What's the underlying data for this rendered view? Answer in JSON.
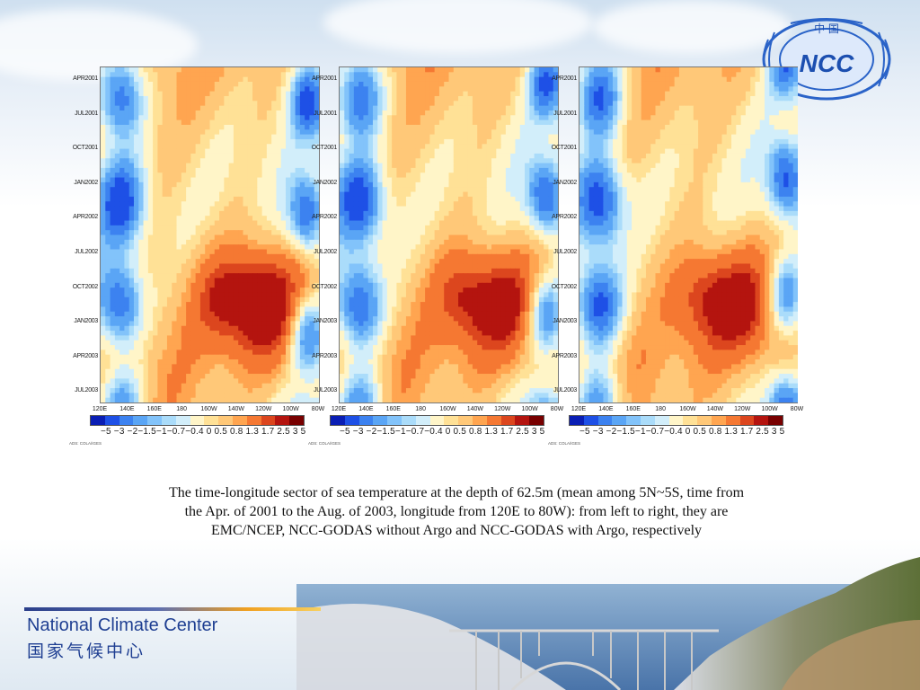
{
  "logo": {
    "text": "NCC",
    "chars": "中 国"
  },
  "chart_data": [
    {
      "type": "heatmap",
      "title": "EMC/NCEP",
      "y_ticks": [
        "APR2001",
        "JUL2001",
        "OCT2001",
        "JAN2002",
        "APR2002",
        "JUL2002",
        "OCT2002",
        "JAN2003",
        "APR2003",
        "JUL2003"
      ],
      "x_ticks": [
        "120E",
        "140E",
        "160E",
        "180",
        "160W",
        "140W",
        "120W",
        "100W",
        "80W"
      ],
      "colorbar_levels": [
        -5,
        -3,
        -2,
        -1.5,
        -1,
        -0.7,
        -0.4,
        0,
        0.5,
        0.8,
        1.3,
        1.7,
        2.5,
        3,
        5
      ],
      "colorbar_label": "−5 −3 −2−1.5−1−0.7−0.4 0  0.5 0.8 1.3 1.7 2.5  3   5",
      "credit": "ADS: COLA/IGES"
    },
    {
      "type": "heatmap",
      "title": "NCC-GODAS without Argo",
      "y_ticks": [
        "APR2001",
        "JUL2001",
        "OCT2001",
        "JAN2002",
        "APR2002",
        "JUL2002",
        "OCT2002",
        "JAN2003",
        "APR2003",
        "JUL2003"
      ],
      "x_ticks": [
        "120E",
        "140E",
        "160E",
        "180",
        "160W",
        "140W",
        "120W",
        "100W",
        "80W"
      ],
      "colorbar_levels": [
        -5,
        -3,
        -2,
        -1.5,
        -1,
        -0.7,
        -0.4,
        0,
        0.5,
        0.8,
        1.3,
        1.7,
        2.5,
        3,
        5
      ],
      "colorbar_label": "−5 −3 −2−1.5−1−0.7−0.4 0  0.5 0.8 1.3 1.7 2.5  3   5",
      "credit": "ADS: COLA/IGES"
    },
    {
      "type": "heatmap",
      "title": "NCC-GODAS with Argo",
      "y_ticks": [
        "APR2001",
        "JUL2001",
        "OCT2001",
        "JAN2002",
        "APR2002",
        "JUL2002",
        "OCT2002",
        "JAN2003",
        "APR2003",
        "JUL2003"
      ],
      "x_ticks": [
        "120E",
        "140E",
        "160E",
        "180",
        "160W",
        "140W",
        "120W",
        "100W",
        "80W"
      ],
      "colorbar_levels": [
        -5,
        -3,
        -2,
        -1.5,
        -1,
        -0.7,
        -0.4,
        0,
        0.5,
        0.8,
        1.3,
        1.7,
        2.5,
        3,
        5
      ],
      "colorbar_label": "−5 −3 −2−1.5−1−0.7−0.4 0  0.5 0.8 1.3 1.7 2.5  3   5",
      "credit": "ADS: COLA/IGES"
    }
  ],
  "colorbar_colors": [
    "#0a1eb4",
    "#1e50e6",
    "#3c82f0",
    "#5aa5f5",
    "#82c3fa",
    "#aadcfa",
    "#d2eefa",
    "#fff5c8",
    "#ffe196",
    "#ffc878",
    "#ffa550",
    "#f57832",
    "#dc461e",
    "#b4140f",
    "#780000"
  ],
  "caption": {
    "line1": "The time-longitude sector of sea temperature at the depth of 62.5m (mean among 5N~5S, time from",
    "line2": "the Apr. of 2001 to the Aug. of 2003, longitude from 120E to 80W): from left to right, they are",
    "line3": "EMC/NCEP, NCC-GODAS without Argo and NCC-GODAS with Argo, respectively"
  },
  "footer": {
    "org_en": "National Climate Center",
    "org_cn": "国家气候中心"
  }
}
